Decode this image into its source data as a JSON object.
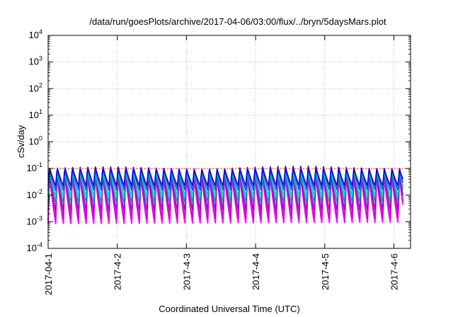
{
  "chart_data": {
    "type": "line",
    "title": "/data/run/goesPlots/archive/2017-04-06/03:00/flux/../bryn/5daysMars.plot",
    "xlabel": "Coordinated Universal Time (UTC)",
    "ylabel": "cSv/day",
    "yscale": "log",
    "ylim": [
      0.0001,
      10000
    ],
    "y_tick_base": "10",
    "y_tick_exponents": [
      "-4",
      "-3",
      "-2",
      "-1",
      "0",
      "1",
      "2",
      "3",
      "4"
    ],
    "x_ticks": [
      "2017-04-1",
      "2017-4-2",
      "2017-4-3",
      "2017-4-4",
      "2017-4-5",
      "2017-4-6"
    ],
    "xlim_days": [
      0,
      5.13
    ],
    "grid": true,
    "legend": "none",
    "reference_line": {
      "value": 0.1,
      "color": "#ff3333"
    },
    "oscillation": {
      "period_days": 0.11,
      "peaks_per_day": 9
    },
    "series": [
      {
        "color": "#ff00ff",
        "peak": 0.075,
        "trough": 0.00085
      },
      {
        "color": "#cc00cc",
        "peak": 0.08,
        "trough": 0.0012
      },
      {
        "color": "#9900cc",
        "peak": 0.085,
        "trough": 0.0025
      },
      {
        "color": "#009999",
        "peak": 0.09,
        "trough": 0.005
      },
      {
        "color": "#00cccc",
        "peak": 0.1,
        "trough": 0.009
      },
      {
        "color": "#3333ff",
        "peak": 0.11,
        "trough": 0.015
      },
      {
        "color": "#0000cc",
        "peak": 0.12,
        "trough": 0.022
      }
    ]
  }
}
